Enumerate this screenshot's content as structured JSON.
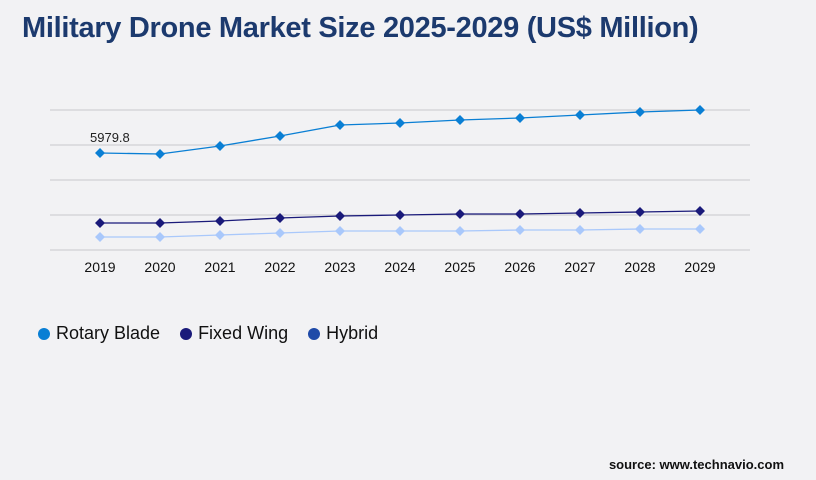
{
  "title": "Military Drone Market Size 2025-2029 (US$ Million)",
  "source": "source: www.technavio.com",
  "chart_data": {
    "type": "line",
    "title": "Military Drone Market Size 2025-2029 (US$ Million)",
    "categories": [
      "2019",
      "2020",
      "2021",
      "2022",
      "2023",
      "2024",
      "2025",
      "2026",
      "2027",
      "2028",
      "2029"
    ],
    "ylim": [
      0,
      8631
    ],
    "grid": true,
    "legend_position": "bottom-left",
    "annotation": "5979.8",
    "series": [
      {
        "name": "Rotary Blade",
        "color": "#0a7fd4",
        "legend_color": "#0a7fd4",
        "values": [
          5979.8,
          5918,
          6412,
          7028,
          7706,
          7830,
          8015,
          8138,
          8323,
          8508,
          8631
        ]
      },
      {
        "name": "Fixed Wing",
        "color": "#1a1a7a",
        "legend_color": "#1a1a7a",
        "values": [
          1665,
          1665,
          1788,
          1973,
          2096,
          2158,
          2219,
          2219,
          2281,
          2343,
          2404
        ]
      },
      {
        "name": "Hybrid",
        "color": "#a9c8fb",
        "legend_color": "#1f4aa8",
        "values": [
          801,
          801,
          925,
          1048,
          1171,
          1171,
          1171,
          1233,
          1233,
          1295,
          1295
        ]
      }
    ]
  }
}
